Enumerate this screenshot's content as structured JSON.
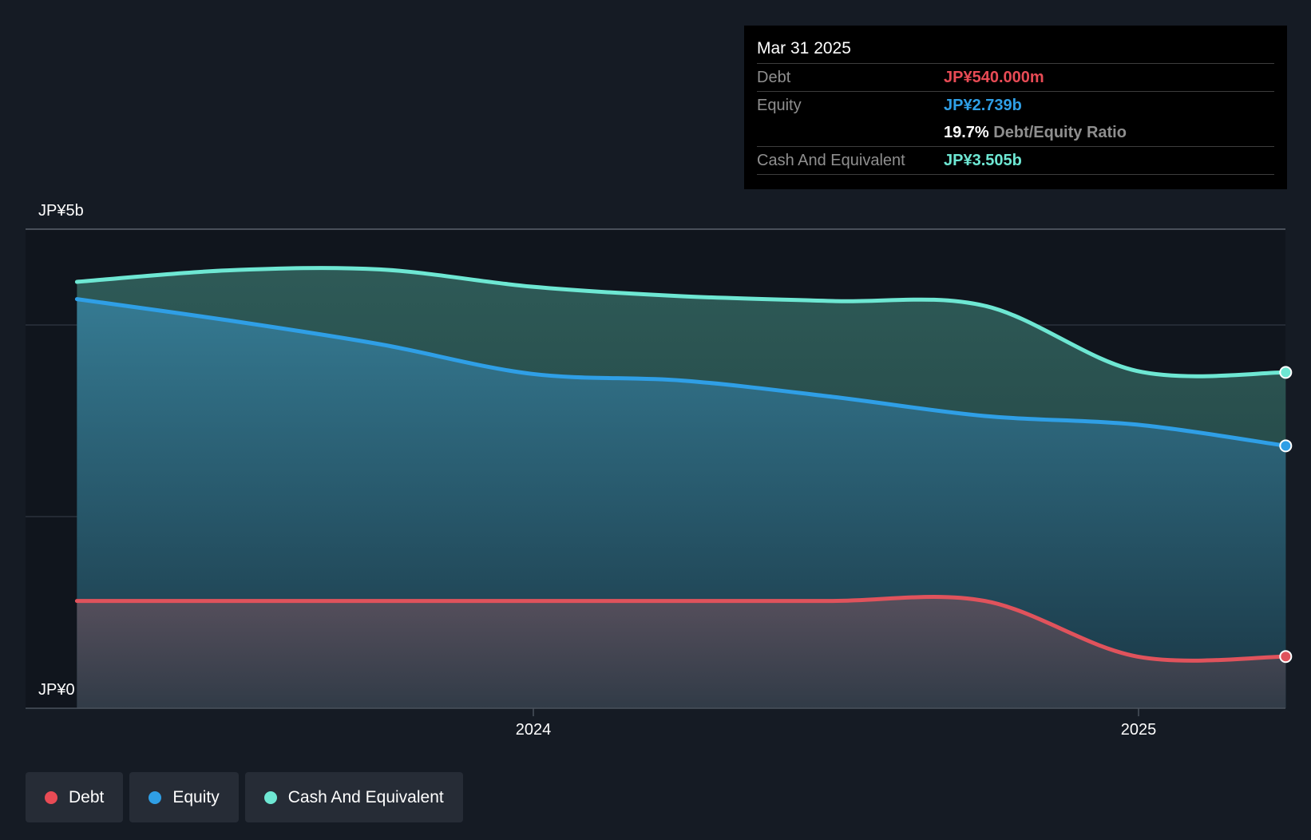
{
  "chart_data": {
    "type": "area",
    "y_axis": {
      "min": 0,
      "max": 5,
      "unit": "b",
      "tick_labels": [
        "JP¥5b",
        "JP¥0"
      ]
    },
    "x_axis": {
      "tick_labels": [
        "2024",
        "2025"
      ]
    },
    "grid": true,
    "series": [
      {
        "name": "Cash And Equivalent",
        "key": "cash",
        "color": "#6ee7d3",
        "points": [
          [
            "2023-03-31",
            4.45
          ],
          [
            "2023-06-30",
            4.57
          ],
          [
            "2023-09-30",
            4.58
          ],
          [
            "2023-12-31",
            4.4
          ],
          [
            "2024-03-31",
            4.3
          ],
          [
            "2024-06-30",
            4.25
          ],
          [
            "2024-09-30",
            4.2
          ],
          [
            "2024-12-31",
            3.52
          ],
          [
            "2025-03-31",
            3.505
          ]
        ]
      },
      {
        "name": "Equity",
        "key": "equity",
        "color": "#2f9fe6",
        "points": [
          [
            "2023-03-31",
            4.27
          ],
          [
            "2023-06-30",
            4.05
          ],
          [
            "2023-09-30",
            3.8
          ],
          [
            "2023-12-31",
            3.49
          ],
          [
            "2024-03-31",
            3.42
          ],
          [
            "2024-06-30",
            3.25
          ],
          [
            "2024-09-30",
            3.05
          ],
          [
            "2024-12-31",
            2.96
          ],
          [
            "2025-03-31",
            2.739
          ]
        ]
      },
      {
        "name": "Debt",
        "key": "debt",
        "color": "#e0535c",
        "points": [
          [
            "2023-03-31",
            1.12
          ],
          [
            "2023-06-30",
            1.12
          ],
          [
            "2023-09-30",
            1.12
          ],
          [
            "2023-12-31",
            1.12
          ],
          [
            "2024-03-31",
            1.12
          ],
          [
            "2024-06-30",
            1.12
          ],
          [
            "2024-09-30",
            1.12
          ],
          [
            "2024-12-31",
            0.54
          ],
          [
            "2025-03-31",
            0.54
          ]
        ]
      }
    ]
  },
  "tooltip": {
    "date": "Mar 31 2025",
    "debt_label": "Debt",
    "debt_value": "JP¥540.000m",
    "equity_label": "Equity",
    "equity_value": "JP¥2.739b",
    "ratio_value": "19.7%",
    "ratio_label": "Debt/Equity Ratio",
    "cash_label": "Cash And Equivalent",
    "cash_value": "JP¥3.505b",
    "colors": {
      "debt": "#e84b55",
      "equity": "#2f9fe6",
      "cash": "#6ee7d3"
    }
  },
  "legend": [
    {
      "label": "Debt",
      "color": "#e84b55"
    },
    {
      "label": "Equity",
      "color": "#2f9fe6"
    },
    {
      "label": "Cash And Equivalent",
      "color": "#6ee7d3"
    }
  ]
}
